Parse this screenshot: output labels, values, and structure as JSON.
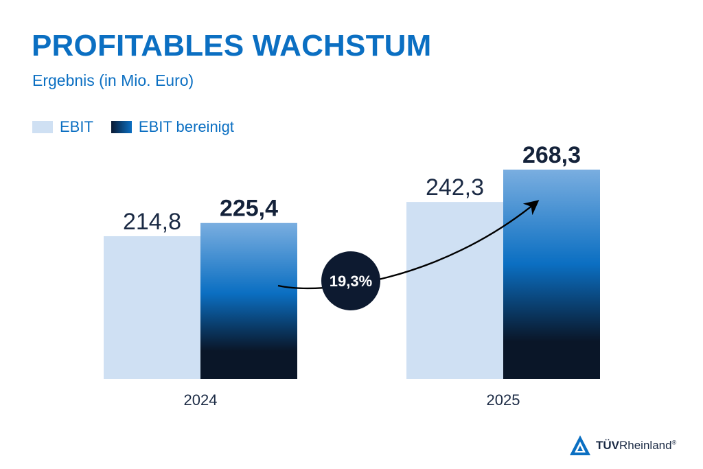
{
  "header": {
    "title": "PROFITABLES WACHSTUM",
    "subtitle": "Ergebnis (in Mio. Euro)"
  },
  "chart_data": {
    "type": "bar",
    "categories": [
      "2024",
      "2025"
    ],
    "series": [
      {
        "name": "EBIT",
        "values": [
          214.8,
          242.3
        ],
        "labels": [
          "214,8",
          "242,3"
        ],
        "color": "#cfe0f3"
      },
      {
        "name": "EBIT bereinigt",
        "values": [
          225.4,
          268.3
        ],
        "labels": [
          "225,4",
          "268,3"
        ],
        "color_top": "#7aaee0",
        "color_mid": "#0b6fc2",
        "color_bottom": "#0a1628"
      }
    ],
    "annotation": {
      "text": "19,3%",
      "from": "2024",
      "to": "2025",
      "series": "EBIT bereinigt"
    },
    "ylim": [
      0,
      268.3
    ],
    "grid": false,
    "legend_position": "top-left"
  },
  "brand": {
    "name_bold": "TÜV",
    "name_regular": "Rheinland",
    "registered": "®",
    "color": "#0b6fc2"
  }
}
